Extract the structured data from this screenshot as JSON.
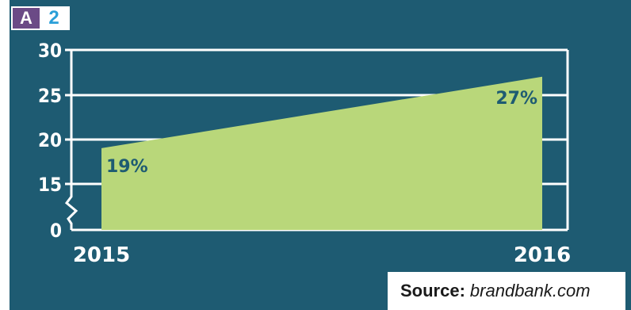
{
  "badge": {
    "letter": "A",
    "number": "2"
  },
  "source": {
    "label": "Source:",
    "value": "brandbank.com"
  },
  "colors": {
    "panel": "#1e5b72",
    "area": "#b9d77a",
    "grid": "#ffffff",
    "text": "#ffffff",
    "value_label": "#1e5b72",
    "badge_a": "#6b4a86",
    "badge_2": "#2a9fd8"
  },
  "chart_data": {
    "type": "area",
    "categories": [
      "2015",
      "2016"
    ],
    "values": [
      19,
      27
    ],
    "value_labels": [
      "19%",
      "27%"
    ],
    "y_ticks": [
      "30",
      "25",
      "20",
      "15",
      "0"
    ],
    "y_tick_values": [
      30,
      25,
      20,
      15,
      0
    ],
    "axis_break": true,
    "ylim": [
      0,
      30
    ],
    "grid": true,
    "title": "",
    "xlabel": "",
    "ylabel": ""
  }
}
